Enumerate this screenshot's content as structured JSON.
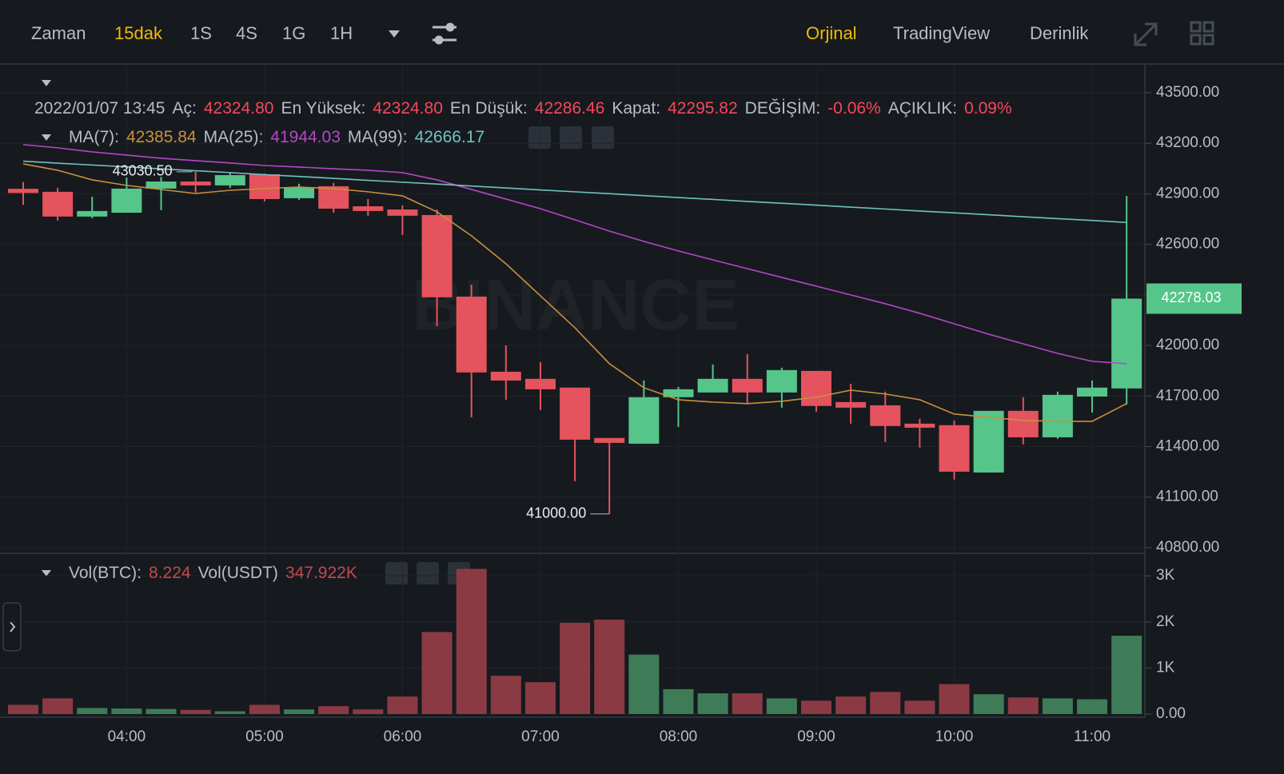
{
  "toolbar": {
    "intervals": [
      "Zaman",
      "15dak",
      "1S",
      "4S",
      "1G",
      "1H"
    ],
    "views": [
      "Orjinal",
      "TradingView",
      "Derinlik"
    ]
  },
  "info": {
    "date": "2022/01/07 13:45",
    "fields": [
      {
        "label": "Aç:",
        "value": "42324.80"
      },
      {
        "label": "En Yüksek:",
        "value": "42324.80"
      },
      {
        "label": "En Düşük:",
        "value": "42286.46"
      },
      {
        "label": "Kapat:",
        "value": "42295.82"
      },
      {
        "label": "DEĞİŞİM:",
        "value": "-0.06%"
      },
      {
        "label": "AÇIKLIK:",
        "value": "0.09%"
      }
    ]
  },
  "watermark": "BINANCE",
  "chart_data": {
    "type": "candlestick",
    "categories": [
      null,
      null,
      null,
      "04:00",
      null,
      null,
      null,
      "05:00",
      null,
      null,
      null,
      "06:00",
      null,
      null,
      null,
      "07:00",
      null,
      null,
      null,
      "08:00",
      null,
      null,
      null,
      "09:00",
      null,
      null,
      null,
      "10:00",
      null,
      null,
      null,
      "11:00",
      null
    ],
    "open": [
      42930,
      42912,
      42765,
      42788,
      42931,
      42973,
      42950,
      43016,
      42874,
      42945,
      42826,
      42807,
      42774,
      42290,
      41844,
      41802,
      41750,
      41451,
      41417,
      41693,
      41721,
      41802,
      41721,
      41849,
      41664,
      41645,
      41536,
      41527,
      41246,
      41612,
      41455,
      41697,
      41745
    ],
    "high": [
      42970,
      42936,
      42883,
      42997,
      43000,
      43030.5,
      43025,
      43020,
      42960,
      42964,
      42869,
      42831,
      42807,
      42361,
      42001,
      41901,
      41750,
      41451,
      41792,
      41754,
      41887,
      41949,
      41868,
      41849,
      41773,
      41726,
      41565,
      41555,
      41612,
      41693,
      41726,
      41792,
      42888
    ],
    "low": [
      42835,
      42741,
      42755,
      42788,
      42803,
      42907,
      42935,
      42855,
      42864,
      42788,
      42770,
      42656,
      42115,
      41574,
      41678,
      41617,
      41195,
      41000,
      41417,
      41517,
      41721,
      41655,
      41631,
      41607,
      41536,
      41427,
      41394,
      41204,
      41246,
      41413,
      41446,
      41602,
      41650
    ],
    "close": [
      42905,
      42765,
      42798,
      42931,
      42973,
      42950,
      43011,
      42869,
      42940,
      42812,
      42798,
      42770,
      42286,
      41840,
      41792,
      41740,
      41441,
      41422,
      41693,
      41740,
      41802,
      41721,
      41854,
      41641,
      41631,
      41522,
      41512,
      41251,
      41612,
      41455,
      41707,
      41750,
      42278.03
    ],
    "up_color": "#56c58a",
    "down_color": "#e5535f",
    "ylim": [
      40776,
      43647
    ],
    "yticks": [
      {
        "value": 43500,
        "label": "43500.00"
      },
      {
        "value": 43200,
        "label": "43200.00"
      },
      {
        "value": 42900,
        "label": "42900.00"
      },
      {
        "value": 42600,
        "label": "42600.00"
      },
      {
        "value": 42300,
        "label": "42300.00"
      },
      {
        "value": 42000,
        "label": "42000.00"
      },
      {
        "value": 41700,
        "label": "41700.00"
      },
      {
        "value": 41400,
        "label": "41400.00"
      },
      {
        "value": 41100,
        "label": "41100.00"
      },
      {
        "value": 40800,
        "label": "40800.00"
      }
    ],
    "grid": true,
    "high_label": "43030.50",
    "low_label": "41000.00",
    "last_price_label": "42278.03",
    "series": [
      {
        "name": "MA(7):",
        "value_label": "42385.84",
        "color": "#c98f3d",
        "values": [
          43078,
          43040,
          42983,
          42950,
          42926,
          42902,
          42921,
          42931,
          42940,
          42931,
          42912,
          42888,
          42793,
          42651,
          42485,
          42295,
          42105,
          41892,
          41749,
          41678,
          41664,
          41655,
          41669,
          41693,
          41735,
          41712,
          41678,
          41593,
          41574,
          41555,
          41550,
          41550,
          41655
        ]
      },
      {
        "name": "MA(25):",
        "value_label": "41944.03",
        "color": "#b546c9",
        "values": [
          43192,
          43173,
          43149,
          43130,
          43111,
          43097,
          43083,
          43068,
          43059,
          43049,
          43040,
          43026,
          42983,
          42926,
          42869,
          42812,
          42746,
          42679,
          42618,
          42561,
          42508,
          42456,
          42404,
          42352,
          42300,
          42248,
          42191,
          42129,
          42067,
          42010,
          41953,
          41906,
          41892
        ]
      },
      {
        "name": "MA(99):",
        "value_label": "42666.17",
        "color": "#6fc3c1",
        "values": [
          43094,
          43082,
          43071,
          43060,
          43048,
          43037,
          43026,
          43014,
          43003,
          42992,
          42980,
          42969,
          42958,
          42946,
          42935,
          42923,
          42912,
          42901,
          42889,
          42878,
          42867,
          42855,
          42844,
          42833,
          42821,
          42810,
          42798,
          42787,
          42776,
          42764,
          42753,
          42742,
          42730
        ]
      }
    ],
    "volume": {
      "legend": [
        {
          "label": "Vol(BTC):",
          "value": "8.224"
        },
        {
          "label": "Vol(USDT)",
          "value": "347.922K"
        }
      ],
      "values": [
        200,
        340,
        130,
        120,
        110,
        90,
        60,
        200,
        100,
        170,
        100,
        380,
        1780,
        3150,
        830,
        690,
        1980,
        2050,
        1290,
        540,
        450,
        450,
        340,
        290,
        380,
        480,
        290,
        650,
        430,
        360,
        340,
        320,
        1700
      ],
      "up_color": "#3d7c57",
      "down_color": "#8b3a43",
      "ylim": [
        0,
        3350
      ],
      "yticks": [
        {
          "value": 3000,
          "label": "3K"
        },
        {
          "value": 2000,
          "label": "2K"
        },
        {
          "value": 1000,
          "label": "1K"
        },
        {
          "value": 0,
          "label": "0.00"
        }
      ]
    }
  }
}
